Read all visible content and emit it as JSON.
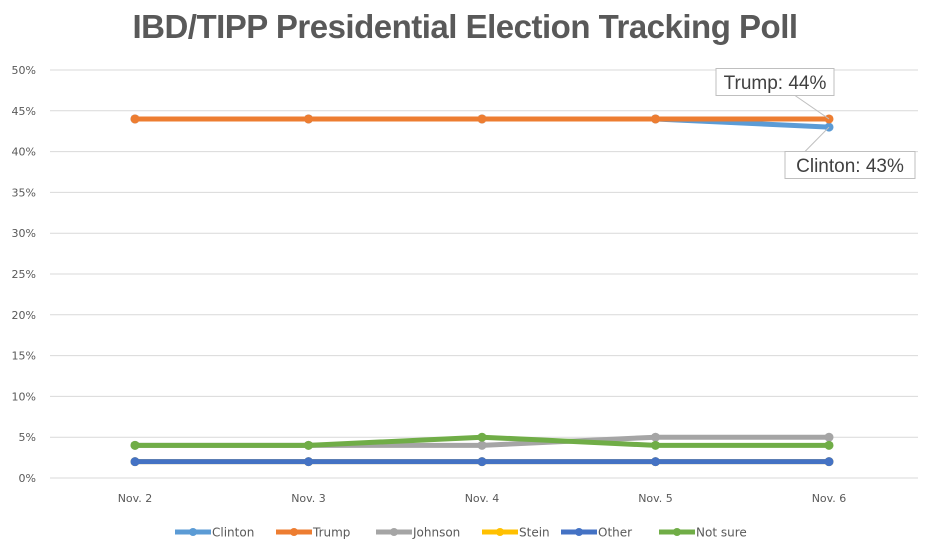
{
  "chart_data": {
    "type": "line",
    "title": "IBD/TIPP Presidential Election Tracking Poll",
    "xlabel": "",
    "ylabel": "",
    "categories": [
      "Nov. 2",
      "Nov. 3",
      "Nov. 4",
      "Nov. 5",
      "Nov. 6"
    ],
    "ylim": [
      0,
      50
    ],
    "yticks": [
      0,
      5,
      10,
      15,
      20,
      25,
      30,
      35,
      40,
      45,
      50
    ],
    "ytick_labels": [
      "0%",
      "5%",
      "10%",
      "15%",
      "20%",
      "25%",
      "30%",
      "35%",
      "40%",
      "45%",
      "50%"
    ],
    "grid": true,
    "legend_position": "bottom",
    "series": [
      {
        "name": "Clinton",
        "color": "#5B9BD5",
        "values": [
          44,
          44,
          44,
          44,
          43
        ]
      },
      {
        "name": "Trump",
        "color": "#ED7D31",
        "values": [
          44,
          44,
          44,
          44,
          44
        ]
      },
      {
        "name": "Johnson",
        "color": "#A5A5A5",
        "values": [
          4,
          4,
          4,
          5,
          5
        ]
      },
      {
        "name": "Stein",
        "color": "#FFC000",
        "values": [
          2,
          2,
          2,
          2,
          2
        ]
      },
      {
        "name": "Other",
        "color": "#4472C4",
        "values": [
          2,
          2,
          2,
          2,
          2
        ]
      },
      {
        "name": "Not sure",
        "color": "#70AD47",
        "values": [
          4,
          4,
          5,
          4,
          4
        ]
      }
    ],
    "annotations": [
      {
        "series": "Trump",
        "category": "Nov. 6",
        "text": "Trump:  44%"
      },
      {
        "series": "Clinton",
        "category": "Nov. 6",
        "text": "Clinton:  43%"
      }
    ]
  }
}
